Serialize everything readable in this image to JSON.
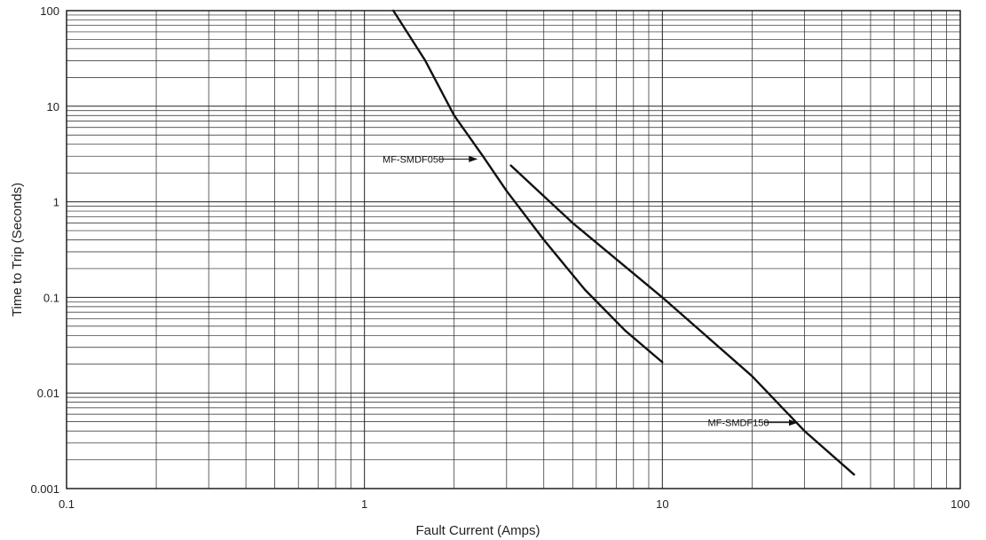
{
  "chart_data": {
    "type": "line",
    "xlabel": "Fault Current  (Amps)",
    "ylabel": "Time to Trip (Seconds)",
    "xscale": "log",
    "yscale": "log",
    "xlim": [
      0.1,
      100
    ],
    "ylim": [
      0.001,
      100
    ],
    "grid": true,
    "x_tick_labels": [
      "0.1",
      "1",
      "10",
      "100"
    ],
    "y_tick_labels": [
      "0.001",
      "0.01",
      "0.1",
      "1",
      "10",
      "100"
    ],
    "series": [
      {
        "name": "MF-SMDF050",
        "x": [
          1.25,
          1.6,
          2.0,
          2.5,
          3.0,
          4.0,
          5.5,
          7.5,
          10.0
        ],
        "y": [
          100,
          30,
          8,
          3,
          1.3,
          0.4,
          0.12,
          0.045,
          0.021
        ]
      },
      {
        "name": "MF-SMDF150",
        "x": [
          3.1,
          5.0,
          10.0,
          20.0,
          30.0,
          44.0
        ],
        "y": [
          2.4,
          0.6,
          0.1,
          0.015,
          0.004,
          0.0014
        ]
      }
    ],
    "annotations": [
      {
        "text": "MF-SMDF050",
        "x": 1.15,
        "y": 2.8,
        "arrow_to_x": 2.4,
        "arrow_to_y": 2.8
      },
      {
        "text": "MF-SMDF150",
        "x": 14.2,
        "y": 0.0049,
        "arrow_to_x": 28.5,
        "arrow_to_y": 0.0049
      }
    ]
  }
}
